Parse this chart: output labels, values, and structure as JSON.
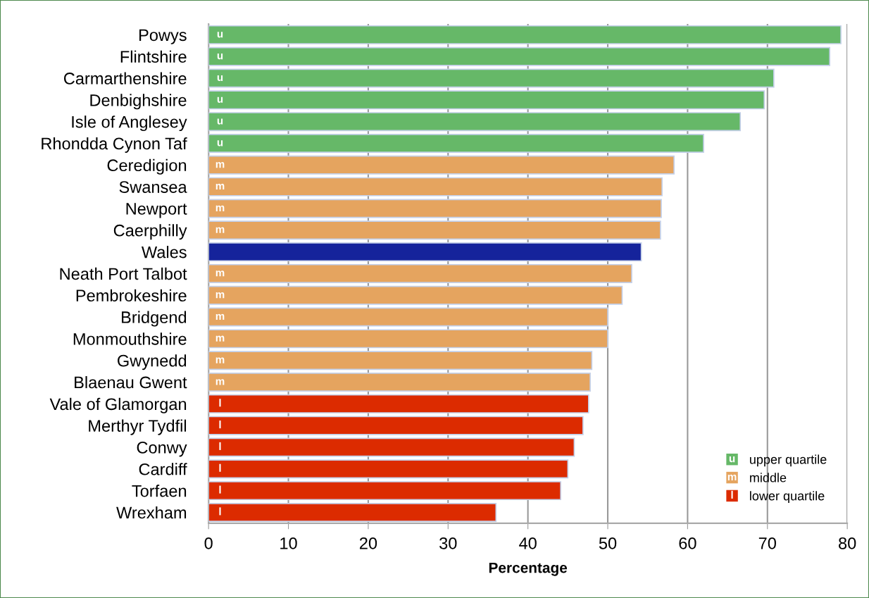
{
  "chart_data": {
    "type": "bar",
    "orientation": "horizontal",
    "xlabel": "Percentage",
    "categories": [
      "Powys",
      "Flintshire",
      "Carmarthenshire",
      "Denbighshire",
      "Isle of Anglesey",
      "Rhondda Cynon Taf",
      "Ceredigion",
      "Swansea",
      "Newport",
      "Caerphilly",
      "Wales",
      "Neath Port Talbot",
      "Pembrokeshire",
      "Bridgend",
      "Monmouthshire",
      "Gwynedd",
      "Blaenau Gwent",
      "Vale of Glamorgan",
      "Merthyr Tydfil",
      "Conwy",
      "Cardiff",
      "Torfaen",
      "Wrexham"
    ],
    "series": [
      {
        "name": "upper quartile",
        "color": "#66b868",
        "values": [
          79.2,
          77.8,
          70.8,
          69.6,
          66.6,
          62.0,
          null,
          null,
          null,
          null,
          null,
          null,
          null,
          null,
          null,
          null,
          null,
          null,
          null,
          null,
          null,
          null,
          null
        ],
        "value_labels": [
          "u",
          "u",
          "u",
          "u",
          "u",
          "u",
          null,
          null,
          null,
          null,
          null,
          null,
          null,
          null,
          null,
          null,
          null,
          null,
          null,
          null,
          null,
          null,
          null
        ]
      },
      {
        "name": "middle",
        "color": "#e5a45f",
        "values": [
          null,
          null,
          null,
          null,
          null,
          null,
          58.3,
          56.8,
          56.7,
          56.6,
          null,
          53.0,
          51.8,
          50.0,
          50.0,
          48.0,
          47.8,
          null,
          null,
          null,
          null,
          null,
          null
        ],
        "value_labels": [
          null,
          null,
          null,
          null,
          null,
          null,
          "m",
          "m",
          "m",
          "m",
          null,
          "m",
          "m",
          "m",
          "m",
          "m",
          "m",
          null,
          null,
          null,
          null,
          null,
          null
        ]
      },
      {
        "color": "#15239b",
        "values": [
          null,
          null,
          null,
          null,
          null,
          null,
          null,
          null,
          null,
          null,
          54.2,
          null,
          null,
          null,
          null,
          null,
          null,
          null,
          null,
          null,
          null,
          null,
          null
        ]
      },
      {
        "name": "lower quartile",
        "color": "#dc2b00",
        "values": [
          null,
          null,
          null,
          null,
          null,
          null,
          null,
          null,
          null,
          null,
          null,
          null,
          null,
          null,
          null,
          null,
          null,
          47.6,
          46.9,
          45.8,
          45.0,
          44.1,
          36.0
        ],
        "value_labels": [
          null,
          null,
          null,
          null,
          null,
          null,
          null,
          null,
          null,
          null,
          null,
          null,
          null,
          null,
          null,
          null,
          null,
          "l",
          "l",
          "l",
          "l",
          "l",
          "l"
        ]
      }
    ],
    "xlim": [
      0,
      80
    ],
    "xticks": [
      0,
      10,
      20,
      30,
      40,
      50,
      60,
      70,
      80
    ],
    "grid": "x",
    "legend": "bottom right"
  }
}
